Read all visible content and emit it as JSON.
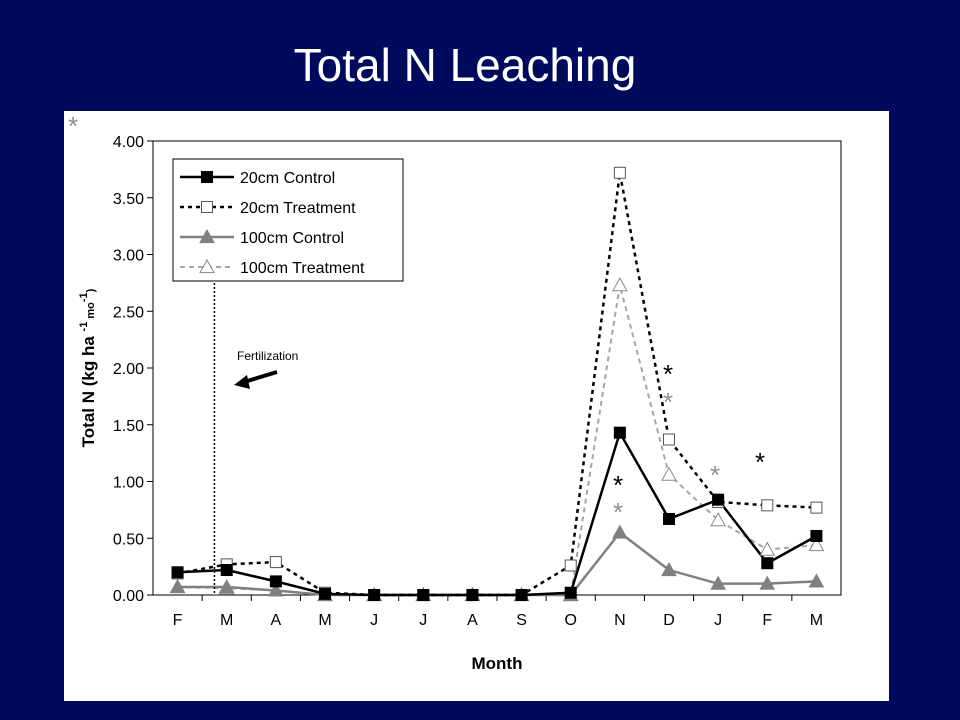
{
  "slide": {
    "title": "Total N Leaching"
  },
  "colors": {
    "background": "#000a5c",
    "panel": "#ffffff",
    "control20": "#000000",
    "treatment20": "#000000",
    "control100": "#808080",
    "treatment100": "#a6a6a6",
    "star_black": "#000000",
    "star_gray": "#909090"
  },
  "chart_data": {
    "type": "line",
    "title": "",
    "xlabel": "Month",
    "ylabel": "Total N (kg ha -1 mo -1)",
    "ylabel_parts": {
      "main": "Total N (kg ha",
      "sup1": "-1",
      "mid": " mo",
      "sup2": "-1",
      "end": ")"
    },
    "categories": [
      "F",
      "M",
      "A",
      "M",
      "J",
      "J",
      "A",
      "S",
      "O",
      "N",
      "D",
      "J",
      "F",
      "M"
    ],
    "ylim": [
      0,
      4
    ],
    "yticks": [
      "0.00",
      "0.50",
      "1.00",
      "1.50",
      "2.00",
      "2.50",
      "3.00",
      "3.50",
      "4.00"
    ],
    "grid": false,
    "legend_position": "top-left",
    "series": [
      {
        "name": "20cm Control",
        "style": "solid",
        "marker": "square-filled",
        "values": [
          0.2,
          0.22,
          0.12,
          0.01,
          0.0,
          0.0,
          0.0,
          0.0,
          0.02,
          1.43,
          0.67,
          0.84,
          0.28,
          0.52
        ]
      },
      {
        "name": "20cm Treatment",
        "style": "dashed",
        "marker": "square-open",
        "values": [
          0.19,
          0.27,
          0.29,
          0.02,
          0.0,
          0.0,
          0.0,
          0.0,
          0.26,
          3.72,
          1.37,
          0.82,
          0.79,
          0.77
        ]
      },
      {
        "name": "100cm Control",
        "style": "solid",
        "marker": "triangle-filled",
        "values": [
          0.07,
          0.07,
          0.04,
          0.0,
          0.0,
          0.0,
          0.0,
          0.0,
          0.0,
          0.55,
          0.22,
          0.1,
          0.1,
          0.12
        ]
      },
      {
        "name": "100cm Treatment",
        "style": "dashed",
        "marker": "triangle-open",
        "values": [
          0.07,
          0.06,
          0.04,
          0.0,
          0.0,
          0.0,
          0.0,
          0.0,
          0.0,
          2.73,
          1.06,
          0.66,
          0.4,
          0.44
        ]
      }
    ],
    "annotations": {
      "fertilization_label": "Fertilization",
      "fertilization_x_index": 0.75,
      "significance_marker": "*"
    }
  }
}
